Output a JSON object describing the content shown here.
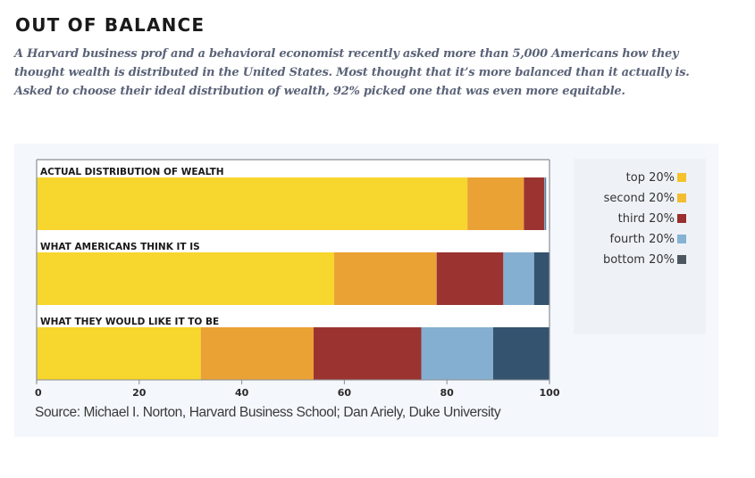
{
  "header": {
    "title": "OUT OF BALANCE",
    "deck": "A Harvard business prof and a behavioral economist recently asked more than 5,000 Americans how they thought wealth is distributed in the United States. Most thought that it’s more balanced than it actually is. Asked to choose their ideal distribution of wealth, 92% picked one that was even more equitable."
  },
  "chart_data": {
    "type": "bar",
    "orientation": "horizontal",
    "stacked": true,
    "title": "",
    "xlabel": "",
    "ylabel": "",
    "xlim": [
      0,
      100
    ],
    "x_ticks": [
      0,
      20,
      40,
      60,
      80,
      100
    ],
    "grid": false,
    "legend_position": "right",
    "categories": [
      "ACTUAL DISTRIBUTION OF WEALTH",
      "WHAT AMERICANS THINK IT IS",
      "WHAT THEY WOULD LIKE IT TO BE"
    ],
    "series": [
      {
        "name": "top 20%",
        "color": "#f7d62d",
        "legend_color": "#f6c22a",
        "values": [
          84,
          58,
          32
        ]
      },
      {
        "name": "second 20%",
        "color": "#eba234",
        "legend_color": "#f3bd32",
        "values": [
          11,
          20,
          22
        ]
      },
      {
        "name": "third 20%",
        "color": "#9b3431",
        "legend_color": "#9b2f2e",
        "values": [
          4,
          13,
          21
        ]
      },
      {
        "name": "fourth 20%",
        "color": "#85afd0",
        "legend_color": "#86b2d3",
        "values": [
          0.2,
          6,
          14
        ]
      },
      {
        "name": "bottom 20%",
        "color": "#33536f",
        "legend_color": "#4c5760",
        "values": [
          0.1,
          3,
          11
        ]
      }
    ]
  },
  "source": "Source: Michael I. Norton, Harvard Business School; Dan Ariely, Duke University"
}
